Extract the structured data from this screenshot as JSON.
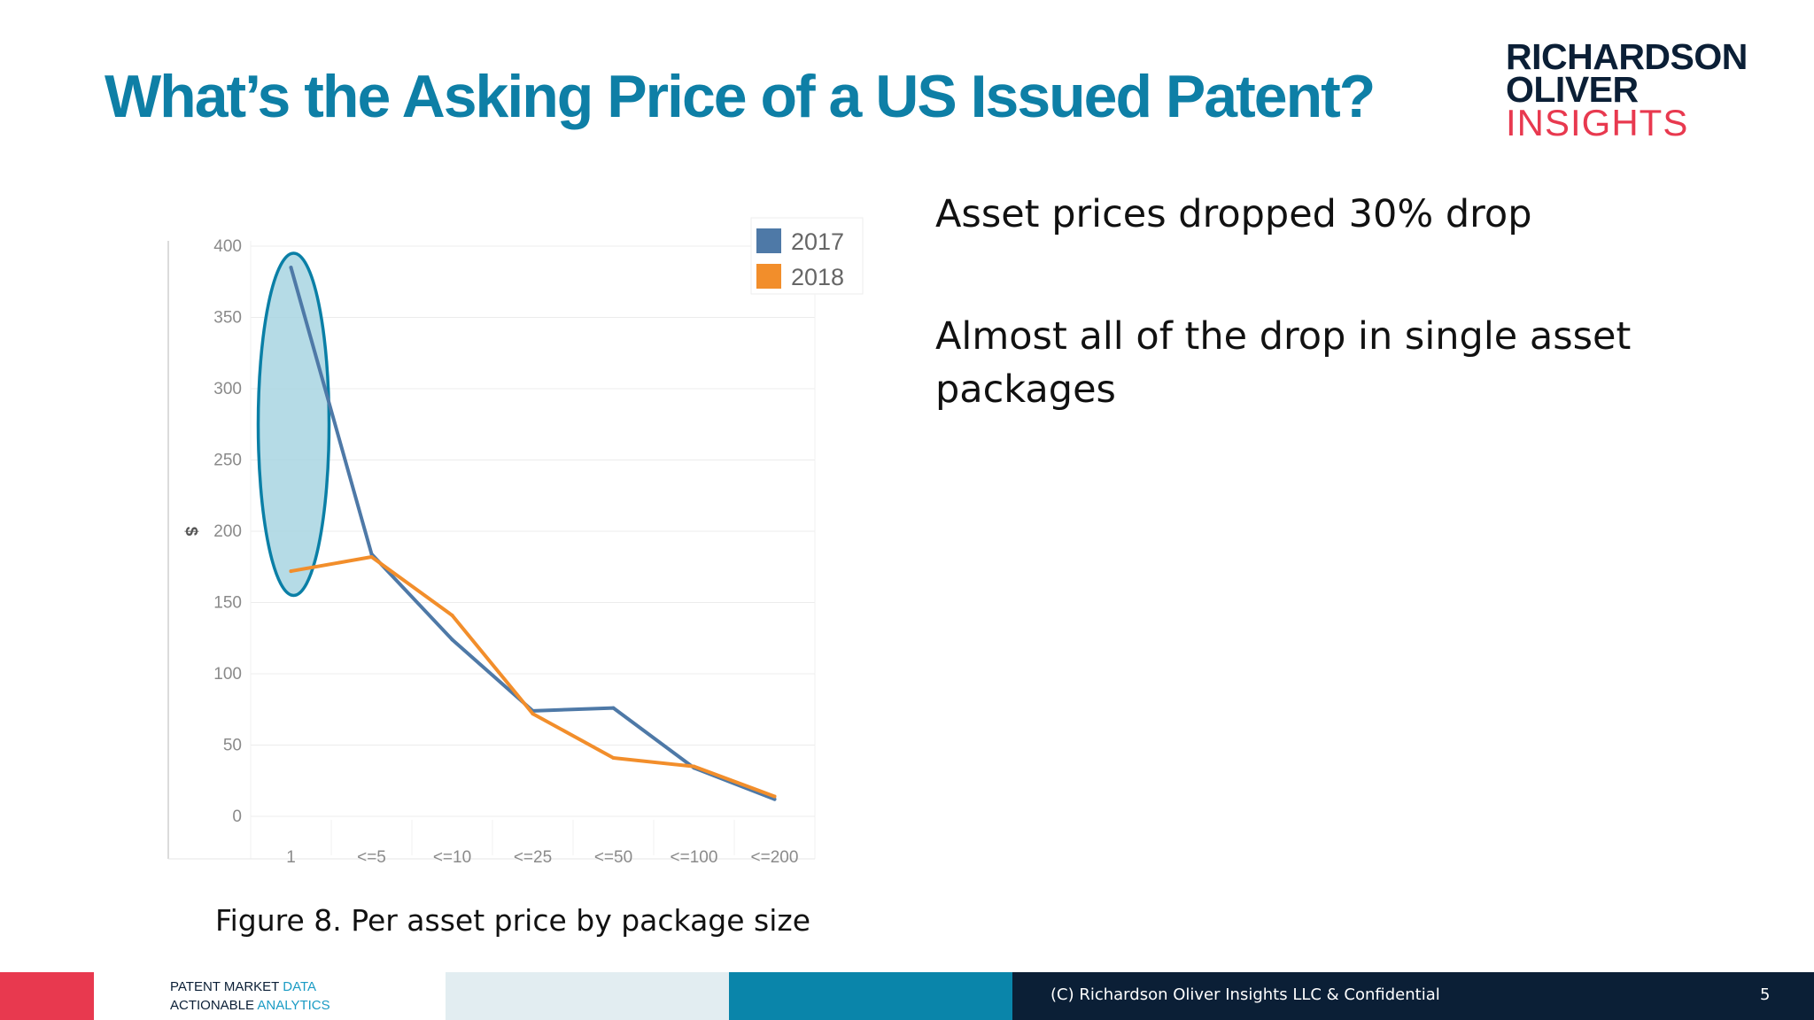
{
  "slide": {
    "title": "What’s the Asking Price of a US Issued Patent?",
    "logo": {
      "line1": "RICHARDSON",
      "line2": "OLIVER",
      "line3": "INSIGHTS"
    },
    "bullets": [
      "Asset prices dropped 30% drop",
      "Almost all of the drop in single asset packages"
    ],
    "caption": "Figure 8. Per asset price by package size"
  },
  "footer": {
    "tagline_line1": "PATENT MARKET",
    "tagline_line1_accent": "DATA",
    "tagline_line2": "ACTIONABLE",
    "tagline_line2_accent": "ANALYTICS",
    "copyright": "(C) Richardson Oliver Insights LLC & Confidential",
    "page_number": "5"
  },
  "colors": {
    "title": "#0e7fa6",
    "series_2017": "#4e79a7",
    "series_2018": "#f28e2b",
    "highlight_fill": "#a8d5e2",
    "highlight_stroke": "#0a7fa6"
  },
  "chart_data": {
    "type": "line",
    "title": "",
    "xlabel": "",
    "ylabel": "$",
    "categories": [
      "1",
      "<=5",
      "<=10",
      "<=25",
      "<=50",
      "<=100",
      "<=200"
    ],
    "series": [
      {
        "name": "2017",
        "values": [
          385,
          184,
          124,
          74,
          76,
          34,
          12
        ]
      },
      {
        "name": "2018",
        "values": [
          172,
          182,
          141,
          72,
          41,
          35,
          14
        ]
      }
    ],
    "ylim": [
      0,
      400
    ],
    "yticks": [
      0,
      50,
      100,
      150,
      200,
      250,
      300,
      350,
      400
    ],
    "grid": true,
    "legend": "top-right",
    "annotation": {
      "type": "ellipse",
      "category": "1",
      "y_range": [
        155,
        395
      ]
    }
  }
}
